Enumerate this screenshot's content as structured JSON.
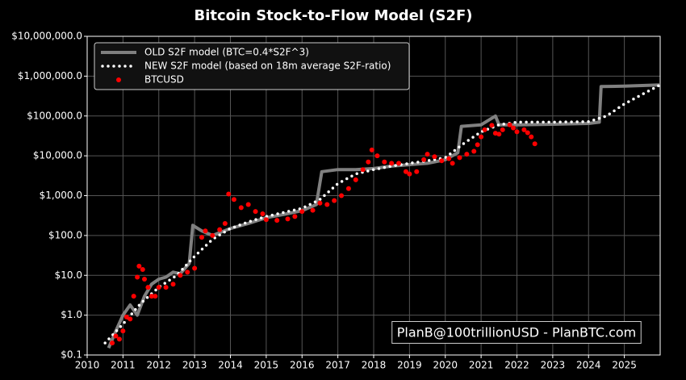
{
  "chart_data": {
    "type": "line",
    "title": "Bitcoin Stock-to-Flow Model (S2F)",
    "annotation": "PlanB@100trillionUSD - PlanBTC.com",
    "log_y": true,
    "grid": true,
    "legend": "upper left",
    "xlim": [
      2010,
      2026
    ],
    "xticks": [
      2010,
      2011,
      2012,
      2013,
      2014,
      2015,
      2016,
      2017,
      2018,
      2019,
      2020,
      2021,
      2022,
      2023,
      2024,
      2025
    ],
    "ylim": [
      0.1,
      10000000
    ],
    "yticks": [
      {
        "value": 0.1,
        "label": "$0.1"
      },
      {
        "value": 1,
        "label": "$1.0"
      },
      {
        "value": 10,
        "label": "$10.0"
      },
      {
        "value": 100,
        "label": "$100.0"
      },
      {
        "value": 1000,
        "label": "$1,000.0"
      },
      {
        "value": 10000,
        "label": "$10,000.0"
      },
      {
        "value": 100000,
        "label": "$100,000.0"
      },
      {
        "value": 1000000,
        "label": "$1,000,000.0"
      },
      {
        "value": 10000000,
        "label": "$10,000,000.0"
      }
    ],
    "series": [
      {
        "name": "OLD S2F model (BTC=0.4*S2F^3)",
        "color": "#808080",
        "style": "solid",
        "x": [
          2010.6,
          2010.8,
          2011.0,
          2011.2,
          2011.4,
          2011.6,
          2011.8,
          2012.0,
          2012.2,
          2012.4,
          2012.6,
          2012.85,
          2012.95,
          2013.2,
          2013.5,
          2014.0,
          2014.5,
          2015.0,
          2015.5,
          2016.0,
          2016.4,
          2016.55,
          2017.0,
          2017.5,
          2018.0,
          2018.5,
          2019.0,
          2019.5,
          2020.0,
          2020.35,
          2020.45,
          2021.0,
          2021.4,
          2021.5,
          2022.0,
          2023.0,
          2024.0,
          2024.3,
          2024.35,
          2025.0,
          2026.0
        ],
        "values": [
          0.15,
          0.4,
          1.0,
          1.8,
          1.0,
          3,
          6,
          8,
          9,
          12,
          11,
          20,
          180,
          130,
          100,
          150,
          200,
          280,
          340,
          420,
          600,
          4000,
          4500,
          4500,
          4800,
          5500,
          6000,
          6500,
          8000,
          12000,
          55000,
          60000,
          100000,
          60000,
          60000,
          62000,
          65000,
          70000,
          550000,
          560000,
          600000
        ]
      },
      {
        "name": "NEW S2F model (based on 18m average S2F-ratio)",
        "color": "#ffffff",
        "style": "dotted",
        "x": [
          2010.5,
          2011.0,
          2011.5,
          2012.0,
          2012.5,
          2013.0,
          2013.5,
          2014.0,
          2014.5,
          2015.0,
          2015.5,
          2016.0,
          2016.5,
          2017.0,
          2017.5,
          2018.0,
          2018.5,
          2019.0,
          2019.5,
          2020.0,
          2020.5,
          2021.0,
          2021.5,
          2022.0,
          2023.0,
          2024.0,
          2024.5,
          2025.0,
          2025.5,
          2026.0
        ],
        "values": [
          0.2,
          0.6,
          2,
          5,
          10,
          30,
          80,
          150,
          220,
          300,
          380,
          480,
          800,
          2000,
          3500,
          4500,
          5500,
          6500,
          7500,
          9000,
          20000,
          40000,
          60000,
          70000,
          70000,
          72000,
          100000,
          200000,
          350000,
          600000
        ]
      },
      {
        "name": "BTCUSD",
        "color": "#ff0000",
        "style": "points",
        "x": [
          2010.7,
          2010.8,
          2010.9,
          2011.0,
          2011.1,
          2011.2,
          2011.3,
          2011.4,
          2011.45,
          2011.55,
          2011.6,
          2011.7,
          2011.8,
          2011.9,
          2012.0,
          2012.2,
          2012.4,
          2012.6,
          2012.8,
          2013.0,
          2013.2,
          2013.3,
          2013.5,
          2013.7,
          2013.85,
          2013.95,
          2014.1,
          2014.3,
          2014.5,
          2014.7,
          2014.9,
          2015.0,
          2015.3,
          2015.6,
          2015.8,
          2016.0,
          2016.3,
          2016.5,
          2016.7,
          2016.9,
          2017.1,
          2017.3,
          2017.5,
          2017.7,
          2017.85,
          2017.95,
          2018.1,
          2018.3,
          2018.5,
          2018.7,
          2018.9,
          2019.0,
          2019.2,
          2019.4,
          2019.5,
          2019.7,
          2019.9,
          2020.1,
          2020.2,
          2020.4,
          2020.6,
          2020.8,
          2020.9,
          2021.0,
          2021.1,
          2021.3,
          2021.4,
          2021.5,
          2021.6,
          2021.8,
          2021.9,
          2022.0,
          2022.2,
          2022.3,
          2022.4,
          2022.5
        ],
        "values": [
          0.2,
          0.3,
          0.25,
          0.4,
          0.9,
          0.8,
          3,
          9,
          17,
          14,
          8,
          5,
          3,
          3,
          5,
          5,
          6,
          10,
          12,
          15,
          90,
          130,
          100,
          140,
          200,
          1100,
          800,
          500,
          600,
          400,
          350,
          250,
          240,
          260,
          300,
          400,
          430,
          650,
          600,
          750,
          1000,
          1500,
          2500,
          4500,
          7000,
          14000,
          10000,
          7000,
          6500,
          6500,
          4000,
          3500,
          4000,
          8000,
          11000,
          9500,
          7500,
          8500,
          6500,
          9000,
          11000,
          13000,
          19000,
          30000,
          45000,
          58000,
          37000,
          35000,
          45000,
          60000,
          50000,
          40000,
          45000,
          38000,
          30000,
          20000
        ]
      }
    ]
  }
}
